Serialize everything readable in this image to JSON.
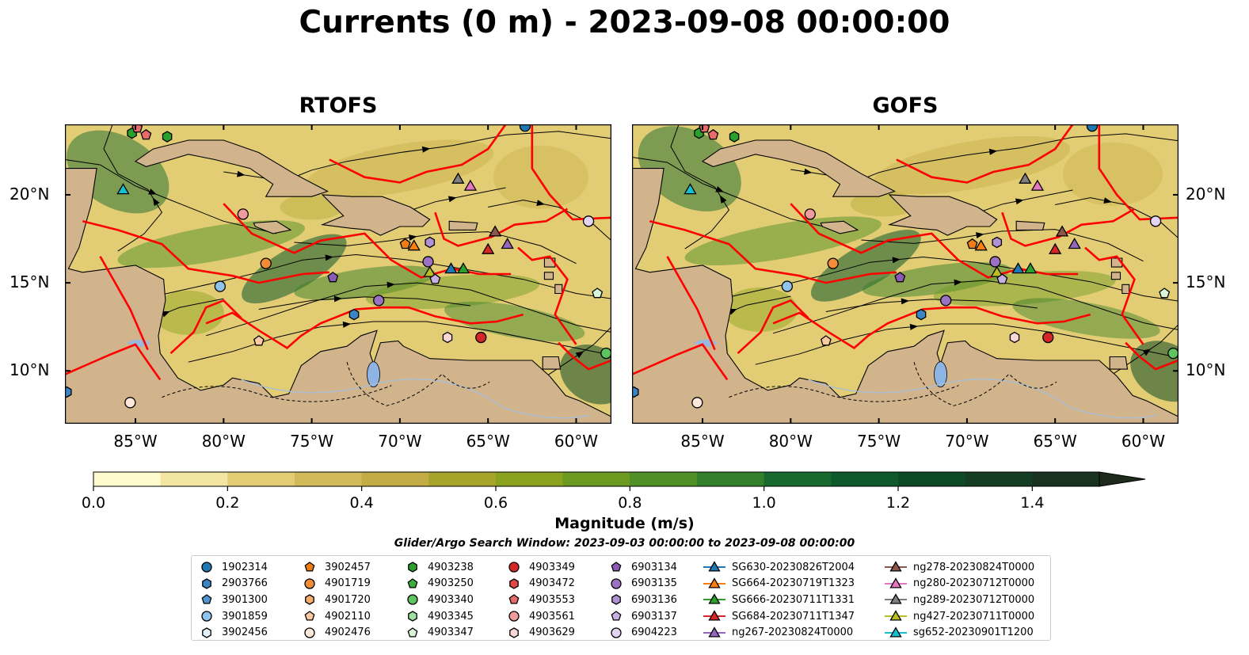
{
  "chart_data": {
    "type": "map",
    "title": "Currents (0 m) - 2023-09-08 00:00:00",
    "panels": [
      {
        "title": "RTOFS"
      },
      {
        "title": "GOFS"
      }
    ],
    "lon_range": [
      -89,
      -58
    ],
    "lat_range": [
      7,
      24
    ],
    "lon_ticks": [
      "85°W",
      "80°W",
      "75°W",
      "70°W",
      "65°W",
      "60°W"
    ],
    "lon_tick_values": [
      -85,
      -80,
      -75,
      -70,
      -65,
      -60
    ],
    "lat_ticks": [
      "20°N",
      "15°N",
      "10°N"
    ],
    "lat_tick_values": [
      20,
      15,
      10
    ],
    "colorbar": {
      "label": "Magnitude (m/s)",
      "range": [
        0,
        1.5
      ],
      "extend": "max",
      "ticks": [
        "0.0",
        "0.2",
        "0.4",
        "0.6",
        "0.8",
        "1.0",
        "1.2",
        "1.4"
      ],
      "tick_values": [
        0,
        0.2,
        0.4,
        0.6,
        0.8,
        1.0,
        1.2,
        1.4
      ],
      "colors": [
        "#fefccf",
        "#f3e6a2",
        "#e2cd74",
        "#d2b95a",
        "#c3ab45",
        "#a7a42c",
        "#8aa21d",
        "#6c9a21",
        "#4f8f25",
        "#337f2a",
        "#17692d",
        "#0e5a2c",
        "#0f4a27",
        "#143d23",
        "#1a3220",
        "#1d2a1c"
      ]
    },
    "search_window": "Glider/Argo Search Window: 2023-09-03 00:00:00 to 2023-09-08 00:00:00",
    "land_color": "#d2b48c",
    "eez_color": "#ff0000",
    "legend": [
      [
        {
          "label": "1902314",
          "marker": "circle",
          "color": "#1f77b4"
        },
        {
          "label": "2903766",
          "marker": "hexagon",
          "color": "#3a86c4"
        },
        {
          "label": "3901300",
          "marker": "pentagon",
          "color": "#4f93d0"
        },
        {
          "label": "3901859",
          "marker": "circle",
          "color": "#8fc3ec"
        },
        {
          "label": "3902456",
          "marker": "hexagon",
          "color": "#e4f1fb"
        }
      ],
      [
        {
          "label": "3902457",
          "marker": "pentagon",
          "color": "#ef7d16"
        },
        {
          "label": "4901719",
          "marker": "circle",
          "color": "#f28c36"
        },
        {
          "label": "4901720",
          "marker": "hexagon",
          "color": "#f7ad6c"
        },
        {
          "label": "4902110",
          "marker": "pentagon",
          "color": "#fbc9a1"
        },
        {
          "label": "4902476",
          "marker": "circle",
          "color": "#fde9d9"
        }
      ],
      [
        {
          "label": "4903238",
          "marker": "hexagon",
          "color": "#2ca02c"
        },
        {
          "label": "4903250",
          "marker": "pentagon",
          "color": "#3cae3c"
        },
        {
          "label": "4903340",
          "marker": "circle",
          "color": "#5ec45e"
        },
        {
          "label": "4903345",
          "marker": "hexagon",
          "color": "#9fdf9f"
        },
        {
          "label": "4903347",
          "marker": "pentagon",
          "color": "#d8f3d8"
        }
      ],
      [
        {
          "label": "4903349",
          "marker": "circle",
          "color": "#d62728"
        },
        {
          "label": "4903472",
          "marker": "hexagon",
          "color": "#e04848"
        },
        {
          "label": "4903553",
          "marker": "pentagon",
          "color": "#e86b6b"
        },
        {
          "label": "4903561",
          "marker": "circle",
          "color": "#f19c9c"
        },
        {
          "label": "4903629",
          "marker": "hexagon",
          "color": "#fad7d7"
        }
      ],
      [
        {
          "label": "6903134",
          "marker": "pentagon",
          "color": "#8a5bb5"
        },
        {
          "label": "6903135",
          "marker": "circle",
          "color": "#9b72c2"
        },
        {
          "label": "6903136",
          "marker": "hexagon",
          "color": "#b091d2"
        },
        {
          "label": "6903137",
          "marker": "pentagon",
          "color": "#c8b1e2"
        },
        {
          "label": "6904223",
          "marker": "circle",
          "color": "#e3d4f1"
        }
      ],
      [
        {
          "label": "SG630-20230826T2004",
          "marker": "triangle",
          "color": "#1f77b4"
        },
        {
          "label": "SG664-20230719T1323",
          "marker": "triangle",
          "color": "#ff7f0e"
        },
        {
          "label": "SG666-20230711T1331",
          "marker": "triangle",
          "color": "#2ca02c"
        },
        {
          "label": "SG684-20230711T1347",
          "marker": "triangle",
          "color": "#d62728"
        },
        {
          "label": "ng267-20230824T0000",
          "marker": "triangle",
          "color": "#9467bd"
        }
      ],
      [
        {
          "label": "ng278-20230824T0000",
          "marker": "triangle",
          "color": "#8c564b"
        },
        {
          "label": "ng280-20230712T0000",
          "marker": "triangle",
          "color": "#e377c2"
        },
        {
          "label": "ng289-20230712T0000",
          "marker": "triangle",
          "color": "#7f7f7f"
        },
        {
          "label": "ng427-20230711T0000",
          "marker": "triangle",
          "color": "#bcbd22"
        },
        {
          "label": "sg652-20230901T1200",
          "marker": "triangle",
          "color": "#17becf"
        }
      ]
    ],
    "markers": [
      {
        "lon": -85.2,
        "lat": 23.5,
        "marker": "hexagon",
        "color": "#2ca02c"
      },
      {
        "lon": -84.9,
        "lat": 23.8,
        "marker": "pentagon",
        "color": "#e86b6b"
      },
      {
        "lon": -84.4,
        "lat": 23.4,
        "marker": "pentagon",
        "color": "#e86b6b"
      },
      {
        "lon": -83.2,
        "lat": 23.3,
        "marker": "hexagon",
        "color": "#2ca02c"
      },
      {
        "lon": -62.9,
        "lat": 23.9,
        "marker": "circle",
        "color": "#1f77b4"
      },
      {
        "lon": -85.7,
        "lat": 20.3,
        "marker": "triangle",
        "color": "#17becf"
      },
      {
        "lon": -78.9,
        "lat": 18.9,
        "marker": "circle",
        "color": "#f19c9c"
      },
      {
        "lon": -66.7,
        "lat": 20.9,
        "marker": "triangle",
        "color": "#7f7f7f"
      },
      {
        "lon": -66.0,
        "lat": 20.5,
        "marker": "triangle",
        "color": "#e377c2"
      },
      {
        "lon": -59.3,
        "lat": 18.5,
        "marker": "circle",
        "color": "#e3d4f1"
      },
      {
        "lon": -64.6,
        "lat": 17.9,
        "marker": "triangle",
        "color": "#8c564b"
      },
      {
        "lon": -69.7,
        "lat": 17.2,
        "marker": "pentagon",
        "color": "#ef7d16"
      },
      {
        "lon": -69.2,
        "lat": 17.1,
        "marker": "triangle",
        "color": "#ff7f0e"
      },
      {
        "lon": -68.3,
        "lat": 17.3,
        "marker": "hexagon",
        "color": "#b091d2"
      },
      {
        "lon": -65.0,
        "lat": 16.9,
        "marker": "triangle",
        "color": "#d62728"
      },
      {
        "lon": -63.9,
        "lat": 17.2,
        "marker": "triangle",
        "color": "#9467bd"
      },
      {
        "lon": -77.6,
        "lat": 16.1,
        "marker": "circle",
        "color": "#f28c36"
      },
      {
        "lon": -68.4,
        "lat": 16.2,
        "marker": "circle",
        "color": "#9b72c2"
      },
      {
        "lon": -68.3,
        "lat": 15.6,
        "marker": "triangle",
        "color": "#bcbd22"
      },
      {
        "lon": -68.0,
        "lat": 15.2,
        "marker": "pentagon",
        "color": "#c8b1e2"
      },
      {
        "lon": -67.1,
        "lat": 15.8,
        "marker": "triangle",
        "color": "#1f77b4"
      },
      {
        "lon": -66.4,
        "lat": 15.8,
        "marker": "triangle",
        "color": "#2ca02c"
      },
      {
        "lon": -73.8,
        "lat": 15.3,
        "marker": "pentagon",
        "color": "#8a5bb5"
      },
      {
        "lon": -80.2,
        "lat": 14.8,
        "marker": "circle",
        "color": "#8fc3ec"
      },
      {
        "lon": -71.2,
        "lat": 14.0,
        "marker": "circle",
        "color": "#9b72c2"
      },
      {
        "lon": -72.6,
        "lat": 13.2,
        "marker": "hexagon",
        "color": "#3a86c4"
      },
      {
        "lon": -58.8,
        "lat": 14.4,
        "marker": "pentagon",
        "color": "#d8f3d8"
      },
      {
        "lon": -78.0,
        "lat": 11.7,
        "marker": "pentagon",
        "color": "#fbc9a1"
      },
      {
        "lon": -67.3,
        "lat": 11.9,
        "marker": "hexagon",
        "color": "#fad7d7"
      },
      {
        "lon": -65.4,
        "lat": 11.9,
        "marker": "circle",
        "color": "#d62728"
      },
      {
        "lon": -58.3,
        "lat": 11.0,
        "marker": "circle",
        "color": "#5ec45e"
      },
      {
        "lon": -88.9,
        "lat": 8.8,
        "marker": "hexagon",
        "color": "#3a86c4"
      },
      {
        "lon": -85.3,
        "lat": 8.2,
        "marker": "circle",
        "color": "#fde9d9"
      }
    ]
  }
}
